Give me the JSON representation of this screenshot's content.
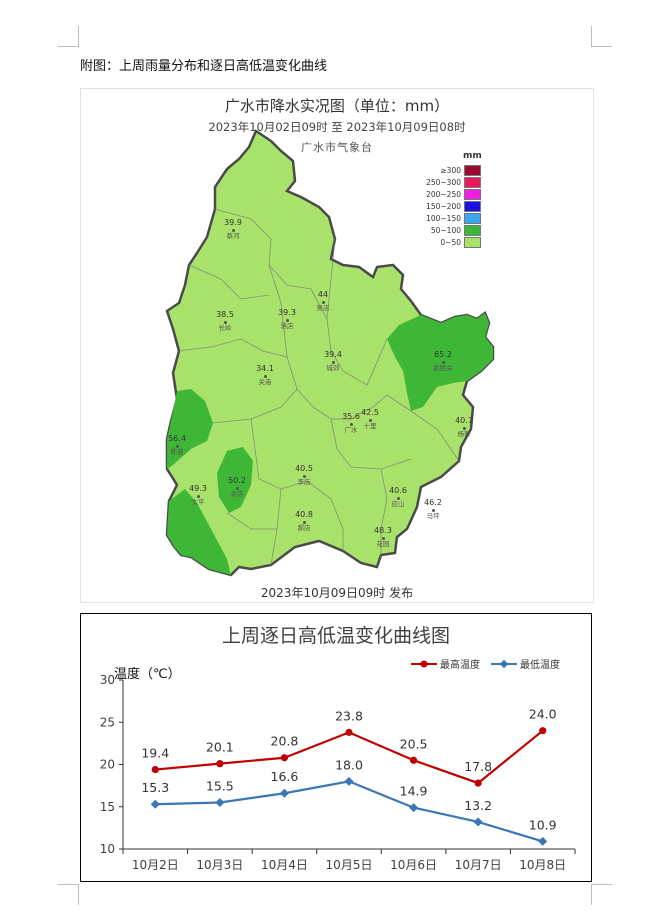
{
  "caption": "附图：上周雨量分布和逐日高低温变化曲线",
  "map": {
    "title": "广水市降水实况图（单位：mm）",
    "subtitle": "2023年10月02日09时  至  2023年10月09日08时",
    "org": "广水市气象台",
    "footer": "2023年10月09日09时 发布",
    "legend": {
      "title": "mm",
      "items": [
        {
          "label": "≥300",
          "color": "#9b0a2e"
        },
        {
          "label": "250~300",
          "color": "#e8195e"
        },
        {
          "label": "200~250",
          "color": "#ee1fe2"
        },
        {
          "label": "150~200",
          "color": "#1a10e0"
        },
        {
          "label": "100~150",
          "color": "#38a7f2"
        },
        {
          "label": "50~100",
          "color": "#3fb736"
        },
        {
          "label": "0~50",
          "color": "#a8e26a"
        }
      ]
    },
    "stations": [
      {
        "value": "39.9",
        "name": "蔡河"
      },
      {
        "value": "38.5",
        "name": "长岭"
      },
      {
        "value": "39.3",
        "name": "骆店"
      },
      {
        "value": "44",
        "name": "吴店"
      },
      {
        "value": "39.4",
        "name": "城郊"
      },
      {
        "value": "65.2",
        "name": "武胜关"
      },
      {
        "value": "34.1",
        "name": "关庙"
      },
      {
        "value": "42.5",
        "name": "十里"
      },
      {
        "value": "35.6",
        "name": "广水"
      },
      {
        "value": "40.7",
        "name": "杨寨"
      },
      {
        "value": "56.4",
        "name": "陈巷"
      },
      {
        "value": "50.2",
        "name": "余店"
      },
      {
        "value": "40.5",
        "name": "李店"
      },
      {
        "value": "40.6",
        "name": "应山"
      },
      {
        "value": "49.3",
        "name": "太平"
      },
      {
        "value": "46.2",
        "name": "马坪"
      },
      {
        "value": "40.8",
        "name": "郝店"
      },
      {
        "value": "48.3",
        "name": "花园"
      }
    ]
  },
  "chart_data": {
    "type": "line",
    "title": "上周逐日高低温变化曲线图",
    "ylabel": "温度（℃）",
    "categories": [
      "10月2日",
      "10月3日",
      "10月4日",
      "10月5日",
      "10月6日",
      "10月7日",
      "10月8日"
    ],
    "ylim": [
      10,
      30
    ],
    "yticks": [
      "10",
      "15",
      "20",
      "25",
      "30"
    ],
    "legend_position": "top-right",
    "series": [
      {
        "name": "最高温度",
        "color": "#c00000",
        "values": [
          19.4,
          20.1,
          20.8,
          23.8,
          20.5,
          17.8,
          24.0
        ],
        "labels": [
          "19.4",
          "20.1",
          "20.8",
          "23.8",
          "20.5",
          "17.8",
          "24.0"
        ]
      },
      {
        "name": "最低温度",
        "color": "#3c76b6",
        "values": [
          15.3,
          15.5,
          16.6,
          18.0,
          14.9,
          13.2,
          10.9
        ],
        "labels": [
          "15.3",
          "15.5",
          "16.6",
          "18.0",
          "14.9",
          "13.2",
          "10.9"
        ]
      }
    ]
  }
}
